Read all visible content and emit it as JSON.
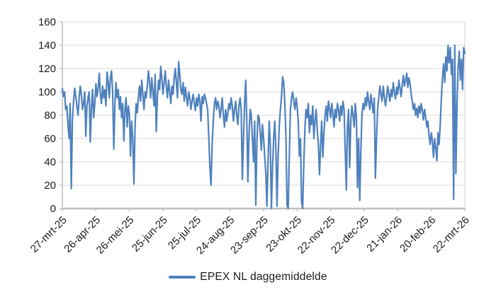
{
  "colors": {
    "line": "#4F81BD",
    "grid": "#D9D9D9",
    "axis": "#BFBFBF",
    "text": "#1a1a1a",
    "background": "#FFFFFF"
  },
  "legend": {
    "label": "EPEX NL daggemiddelde"
  },
  "chart_data": {
    "type": "line",
    "title": "",
    "xlabel": "",
    "ylabel": "",
    "ylim": [
      0,
      160
    ],
    "y_ticks": [
      0,
      20,
      40,
      60,
      80,
      100,
      120,
      140,
      160
    ],
    "grid": "horizontal",
    "legend_position": "bottom",
    "x_tick_labels": [
      "27-mrt-25",
      "26-apr-25",
      "26-mei-25",
      "25-jun-25",
      "25-jul-25",
      "24-aug-25",
      "23-sep-25",
      "23-okt-25",
      "22-nov-25",
      "22-dec-25",
      "21-jan-26",
      "20-feb-26",
      "22-mrt-26"
    ],
    "x_tick_interval_days": 30,
    "series": [
      {
        "name": "EPEX NL daggemiddelde",
        "color": "#4F81BD",
        "values": [
          103,
          96,
          100,
          85,
          88,
          72,
          60,
          90,
          17,
          75,
          92,
          103,
          96,
          88,
          80,
          95,
          105,
          98,
          85,
          90,
          100,
          62,
          88,
          95,
          100,
          57,
          85,
          102,
          78,
          90,
          107,
          96,
          103,
          116,
          98,
          90,
          105,
          95,
          102,
          88,
          117,
          108,
          95,
          112,
          118,
          100,
          51,
          90,
          108,
          95,
          102,
          85,
          96,
          78,
          90,
          58,
          85,
          95,
          70,
          88,
          80,
          45,
          75,
          60,
          21,
          70,
          90,
          82,
          95,
          105,
          92,
          110,
          98,
          85,
          100,
          95,
          105,
          118,
          108,
          95,
          112,
          100,
          88,
          115,
          66,
          95,
          110,
          102,
          122,
          112,
          98,
          108,
          118,
          105,
          95,
          110,
          100,
          90,
          105,
          98,
          112,
          120,
          108,
          95,
          126,
          115,
          102,
          98,
          108,
          92,
          104,
          96,
          88,
          100,
          95,
          85,
          92,
          98,
          90,
          84,
          95,
          88,
          98,
          92,
          75,
          96,
          90,
          98,
          95,
          90,
          85,
          60,
          35,
          20,
          55,
          75,
          90,
          95,
          85,
          92,
          88,
          78,
          85,
          95,
          80,
          70,
          85,
          75,
          82,
          90,
          85,
          95,
          88,
          75,
          85,
          92,
          80,
          72,
          88,
          95,
          85,
          25,
          60,
          90,
          110,
          75,
          23,
          65,
          85,
          80,
          60,
          40,
          75,
          3,
          55,
          80,
          78,
          65,
          50,
          72,
          60,
          45,
          30,
          2,
          40,
          75,
          55,
          0,
          35,
          60,
          75,
          50,
          2,
          45,
          70,
          85,
          95,
          113,
          108,
          90,
          60,
          3,
          0,
          45,
          85,
          95,
          100,
          92,
          85,
          95,
          88,
          75,
          45,
          60,
          5,
          0,
          40,
          70,
          85,
          78,
          90,
          65,
          80,
          72,
          88,
          60,
          75,
          85,
          68,
          55,
          29,
          55,
          75,
          44,
          65,
          80,
          88,
          75,
          92,
          85,
          78,
          90,
          82,
          70,
          85,
          78,
          90,
          85,
          75,
          88,
          80,
          92,
          85,
          50,
          16,
          70,
          85,
          35,
          75,
          88,
          80,
          70,
          90,
          78,
          18,
          60,
          7,
          50,
          80,
          90,
          85,
          95,
          88,
          100,
          92,
          85,
          98,
          90,
          82,
          95,
          26,
          60,
          85,
          95,
          105,
          98,
          92,
          105,
          96,
          88,
          95,
          105,
          98,
          92,
          102,
          96,
          108,
          100,
          94,
          104,
          98,
          110,
          103,
          96,
          106,
          114,
          105,
          110,
          116,
          104,
          112,
          107,
          98,
          92,
          85,
          90,
          80,
          86,
          78,
          88,
          82,
          90,
          84,
          76,
          85,
          78,
          70,
          75,
          62,
          55,
          65,
          58,
          44,
          60,
          52,
          41,
          65,
          55,
          72,
          95,
          112,
          124,
          108,
          130,
          118,
          140,
          125,
          138,
          115,
          128,
          8,
          140,
          30,
          90,
          120,
          135,
          110,
          128,
          102,
          138,
          133
        ]
      }
    ]
  }
}
